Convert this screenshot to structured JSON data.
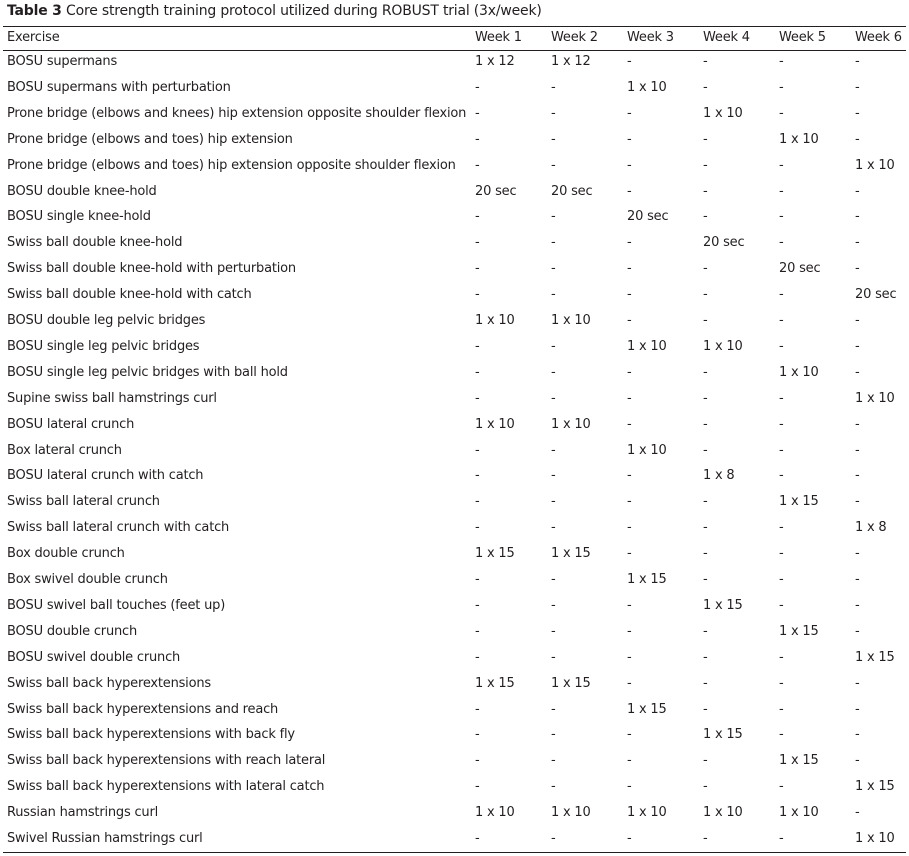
{
  "title": {
    "label": "Table 3",
    "text": "Core strength training protocol utilized during ROBUST trial (3x/week)"
  },
  "columns": [
    "Exercise",
    "Week 1",
    "Week 2",
    "Week 3",
    "Week 4",
    "Week 5",
    "Week 6"
  ],
  "rows": [
    [
      "BOSU supermans",
      "1 x 12",
      "1 x 12",
      "-",
      "-",
      "-",
      "-"
    ],
    [
      "BOSU supermans with perturbation",
      "-",
      "-",
      "1 x 10",
      "-",
      "-",
      "-"
    ],
    [
      "Prone bridge (elbows and knees) hip extension opposite shoulder flexion",
      "-",
      "-",
      "-",
      "1 x 10",
      "-",
      "-"
    ],
    [
      "Prone bridge (elbows and toes) hip extension",
      "-",
      "-",
      "-",
      "-",
      "1 x 10",
      "-"
    ],
    [
      "Prone bridge (elbows and toes) hip extension opposite shoulder flexion",
      "-",
      "-",
      "-",
      "-",
      "-",
      "1 x 10"
    ],
    [
      "BOSU double knee-hold",
      "20 sec",
      "20 sec",
      "-",
      "-",
      "-",
      "-"
    ],
    [
      "BOSU single knee-hold",
      "-",
      "-",
      "20 sec",
      "-",
      "-",
      "-"
    ],
    [
      "Swiss ball double knee-hold",
      "-",
      "-",
      "-",
      "20 sec",
      "-",
      "-"
    ],
    [
      "Swiss ball double knee-hold with perturbation",
      "-",
      "-",
      "-",
      "-",
      "20 sec",
      "-"
    ],
    [
      "Swiss ball double knee-hold with catch",
      "-",
      "-",
      "-",
      "-",
      "-",
      "20 sec"
    ],
    [
      "BOSU double leg pelvic bridges",
      "1 x 10",
      "1 x 10",
      "-",
      "-",
      "-",
      "-"
    ],
    [
      "BOSU single leg pelvic bridges",
      "-",
      "-",
      "1 x 10",
      "1 x 10",
      "-",
      "-"
    ],
    [
      "BOSU single leg pelvic bridges with ball hold",
      "-",
      "-",
      "-",
      "-",
      "1 x 10",
      "-"
    ],
    [
      "Supine swiss ball hamstrings curl",
      "-",
      "-",
      "-",
      "-",
      "-",
      "1 x 10"
    ],
    [
      "BOSU lateral crunch",
      "1 x 10",
      "1 x 10",
      "-",
      "-",
      "-",
      "-"
    ],
    [
      "Box lateral crunch",
      "-",
      "-",
      "1 x 10",
      "-",
      "-",
      "-"
    ],
    [
      "BOSU lateral crunch with catch",
      "-",
      "-",
      "-",
      "1 x 8",
      "-",
      "-"
    ],
    [
      "Swiss ball lateral crunch",
      "-",
      "-",
      "-",
      "-",
      "1 x 15",
      "-"
    ],
    [
      "Swiss ball lateral crunch with catch",
      "-",
      "-",
      "-",
      "-",
      "-",
      "1 x 8"
    ],
    [
      "Box double crunch",
      "1 x 15",
      "1 x 15",
      "-",
      "-",
      "-",
      "-"
    ],
    [
      "Box swivel double crunch",
      "-",
      "-",
      "1 x 15",
      "-",
      "-",
      "-"
    ],
    [
      "BOSU swivel ball touches (feet up)",
      "-",
      "-",
      "-",
      "1 x 15",
      "-",
      "-"
    ],
    [
      "BOSU double crunch",
      "-",
      "-",
      "-",
      "-",
      "1 x 15",
      "-"
    ],
    [
      "BOSU swivel double crunch",
      "-",
      "-",
      "-",
      "-",
      "-",
      "1 x 15"
    ],
    [
      "Swiss ball back hyperextensions",
      "1 x 15",
      "1 x 15",
      "-",
      "-",
      "-",
      "-"
    ],
    [
      "Swiss ball back hyperextensions and reach",
      "-",
      "-",
      "1 x 15",
      "-",
      "-",
      "-"
    ],
    [
      "Swiss ball back hyperextensions with back fly",
      "-",
      "-",
      "-",
      "1 x 15",
      "-",
      "-"
    ],
    [
      "Swiss ball back hyperextensions with reach lateral",
      "-",
      "-",
      "-",
      "-",
      "1 x 15",
      "-"
    ],
    [
      "Swiss ball back hyperextensions with lateral catch",
      "-",
      "-",
      "-",
      "-",
      "-",
      "1 x 15"
    ],
    [
      "Russian hamstrings curl",
      "1 x 10",
      "1 x 10",
      "1 x 10",
      "1 x 10",
      "1 x 10",
      "-"
    ],
    [
      "Swivel Russian hamstrings curl",
      "-",
      "-",
      "-",
      "-",
      "-",
      "1 x 10"
    ]
  ]
}
